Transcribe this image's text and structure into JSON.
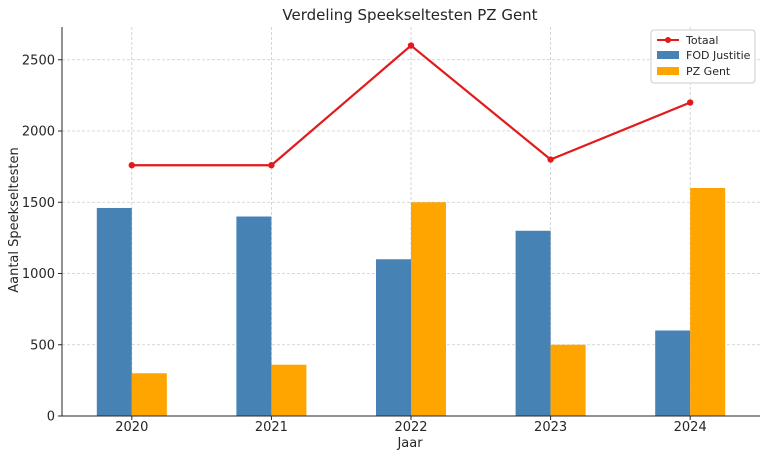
{
  "chart_data": {
    "type": "bar",
    "title": "Verdeling Speekseltesten PZ Gent",
    "xlabel": "Jaar",
    "ylabel": "Aantal Speekseltesten",
    "categories": [
      "2020",
      "2021",
      "2022",
      "2023",
      "2024"
    ],
    "ylim": [
      0,
      2730
    ],
    "yticks": [
      0,
      500,
      1000,
      1500,
      2000,
      2500
    ],
    "grid": true,
    "legend_position": "top-right",
    "series": [
      {
        "name": "FOD Justitie",
        "type": "bar",
        "color": "#4682b4",
        "values": [
          1460,
          1400,
          1100,
          1300,
          600
        ]
      },
      {
        "name": "PZ Gent",
        "type": "bar",
        "color": "#ffa500",
        "values": [
          300,
          360,
          1500,
          500,
          1600
        ]
      },
      {
        "name": "Totaal",
        "type": "line",
        "color": "#e31a1c",
        "values": [
          1760,
          1760,
          2600,
          1800,
          2200
        ]
      }
    ]
  }
}
